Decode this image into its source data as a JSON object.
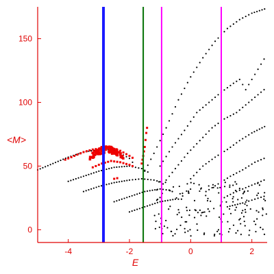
{
  "chart_data": {
    "type": "scatter",
    "xlabel": "E",
    "ylabel": "<M>",
    "xlim": [
      -5.0,
      2.5
    ],
    "ylim": [
      -10,
      175
    ],
    "xticks": [
      -4,
      -2,
      0,
      2
    ],
    "yticks": [
      0,
      50,
      100,
      150
    ],
    "xtick_labels": [
      "-4",
      "-2",
      "0",
      "2"
    ],
    "ytick_labels": [
      "0",
      "50",
      "100",
      "150"
    ],
    "grid": false,
    "colors": {
      "axes": "#e00000",
      "black_series": "#000000",
      "red_series": "#ee0000",
      "blue_line": "#1a1aff",
      "green_line": "#007000",
      "magenta_line": "#ff00ff"
    },
    "vertical_lines": [
      {
        "x": -2.85,
        "color": "#1a1aff",
        "width": 4
      },
      {
        "x": -1.55,
        "color": "#007000",
        "width": 2
      },
      {
        "x": -0.95,
        "color": "#ff00ff",
        "width": 2
      },
      {
        "x": 1.0,
        "color": "#ff00ff",
        "width": 2
      }
    ],
    "curves": [
      {
        "color": "#000000",
        "points": [
          [
            -5.0,
            47
          ],
          [
            -4.5,
            52
          ],
          [
            -4.0,
            57
          ],
          [
            -3.5,
            61
          ],
          [
            -3.0,
            63
          ],
          [
            -2.6,
            63
          ],
          [
            -2.3,
            60
          ],
          [
            -2.0,
            56
          ],
          [
            -1.8,
            50
          ]
        ]
      },
      {
        "color": "#000000",
        "points": [
          [
            -4.0,
            38
          ],
          [
            -3.5,
            42
          ],
          [
            -3.0,
            46
          ],
          [
            -2.5,
            49
          ],
          [
            -2.0,
            50
          ],
          [
            -1.6,
            48
          ],
          [
            -1.3,
            44
          ]
        ]
      },
      {
        "color": "#000000",
        "points": [
          [
            -3.5,
            30
          ],
          [
            -3.0,
            34
          ],
          [
            -2.5,
            37
          ],
          [
            -2.0,
            39
          ],
          [
            -1.6,
            40
          ],
          [
            -1.2,
            39
          ],
          [
            -0.9,
            37
          ]
        ]
      },
      {
        "color": "#000000",
        "points": [
          [
            -2.5,
            22
          ],
          [
            -2.0,
            26
          ],
          [
            -1.5,
            30
          ],
          [
            -1.0,
            32
          ],
          [
            -0.7,
            31
          ],
          [
            -0.5,
            29
          ]
        ]
      },
      {
        "color": "#000000",
        "points": [
          [
            -2.0,
            14
          ],
          [
            -1.5,
            18
          ],
          [
            -1.0,
            22
          ],
          [
            -0.5,
            24
          ],
          [
            -0.2,
            24
          ]
        ]
      },
      {
        "color": "#000000",
        "points": [
          [
            -1.5,
            46
          ],
          [
            -1.2,
            60
          ],
          [
            -0.8,
            80
          ],
          [
            -0.4,
            102
          ],
          [
            0.0,
            120
          ],
          [
            0.4,
            135
          ],
          [
            0.8,
            148
          ],
          [
            1.2,
            158
          ],
          [
            1.6,
            165
          ],
          [
            2.0,
            170
          ],
          [
            2.5,
            174
          ]
        ]
      },
      {
        "color": "#000000",
        "points": [
          [
            -1.0,
            50
          ],
          [
            -0.6,
            65
          ],
          [
            -0.2,
            78
          ],
          [
            0.2,
            92
          ],
          [
            0.6,
            100
          ],
          [
            1.0,
            108
          ],
          [
            1.4,
            115
          ],
          [
            1.6,
            118
          ],
          [
            1.8,
            110
          ],
          [
            2.0,
            118
          ],
          [
            2.3,
            130
          ],
          [
            2.5,
            138
          ]
        ]
      },
      {
        "color": "#000000",
        "points": [
          [
            -0.9,
            36
          ],
          [
            -0.5,
            48
          ],
          [
            -0.1,
            60
          ],
          [
            0.3,
            70
          ],
          [
            0.7,
            80
          ],
          [
            1.1,
            87
          ],
          [
            1.5,
            92
          ],
          [
            1.9,
            100
          ],
          [
            2.2,
            106
          ],
          [
            2.5,
            112
          ]
        ]
      },
      {
        "color": "#000000",
        "points": [
          [
            0.0,
            40
          ],
          [
            0.4,
            50
          ],
          [
            0.8,
            57
          ],
          [
            1.2,
            63
          ],
          [
            1.6,
            70
          ],
          [
            2.0,
            76
          ],
          [
            2.5,
            82
          ]
        ]
      },
      {
        "color": "#000000",
        "points": [
          [
            0.5,
            30
          ],
          [
            0.9,
            36
          ],
          [
            1.3,
            42
          ],
          [
            1.7,
            47
          ],
          [
            2.1,
            53
          ],
          [
            2.5,
            57
          ]
        ]
      },
      {
        "color": "#000000",
        "points": [
          [
            1.0,
            24
          ],
          [
            1.4,
            29
          ],
          [
            1.8,
            33
          ],
          [
            2.2,
            37
          ],
          [
            2.5,
            40
          ]
        ]
      },
      {
        "color": "#000000",
        "points": [
          [
            1.2,
            18
          ],
          [
            1.7,
            21
          ],
          [
            2.1,
            24
          ],
          [
            2.5,
            27
          ]
        ]
      },
      {
        "color": "#ee0000",
        "points": [
          [
            -4.1,
            55
          ],
          [
            -3.8,
            58
          ],
          [
            -3.5,
            61
          ],
          [
            -3.2,
            63
          ],
          [
            -2.9,
            64
          ],
          [
            -2.6,
            64
          ],
          [
            -2.3,
            62
          ],
          [
            -2.0,
            58
          ],
          [
            -1.8,
            55
          ]
        ]
      },
      {
        "color": "#ee0000",
        "points": [
          [
            -3.2,
            49
          ],
          [
            -2.9,
            52
          ],
          [
            -2.6,
            54
          ],
          [
            -2.3,
            53
          ],
          [
            -2.0,
            51
          ],
          [
            -1.8,
            49
          ]
        ]
      },
      {
        "color": "#ee0000",
        "points": [
          [
            -2.5,
            40
          ],
          [
            -2.3,
            41
          ]
        ]
      },
      {
        "color": "#ee0000",
        "points": [
          [
            -1.6,
            52
          ],
          [
            -1.55,
            58
          ],
          [
            -1.5,
            65
          ],
          [
            -1.45,
            76
          ],
          [
            -1.4,
            84
          ]
        ]
      }
    ],
    "noise_region": {
      "color": "#000000",
      "x": [
        -1.2,
        2.5
      ],
      "y": [
        -5,
        38
      ],
      "count": 170
    },
    "red_cluster": {
      "color": "#ee0000",
      "center_x": -2.75,
      "center_y": 63,
      "spread_x": 0.55,
      "spread_y": 2.5,
      "count": 90
    }
  }
}
